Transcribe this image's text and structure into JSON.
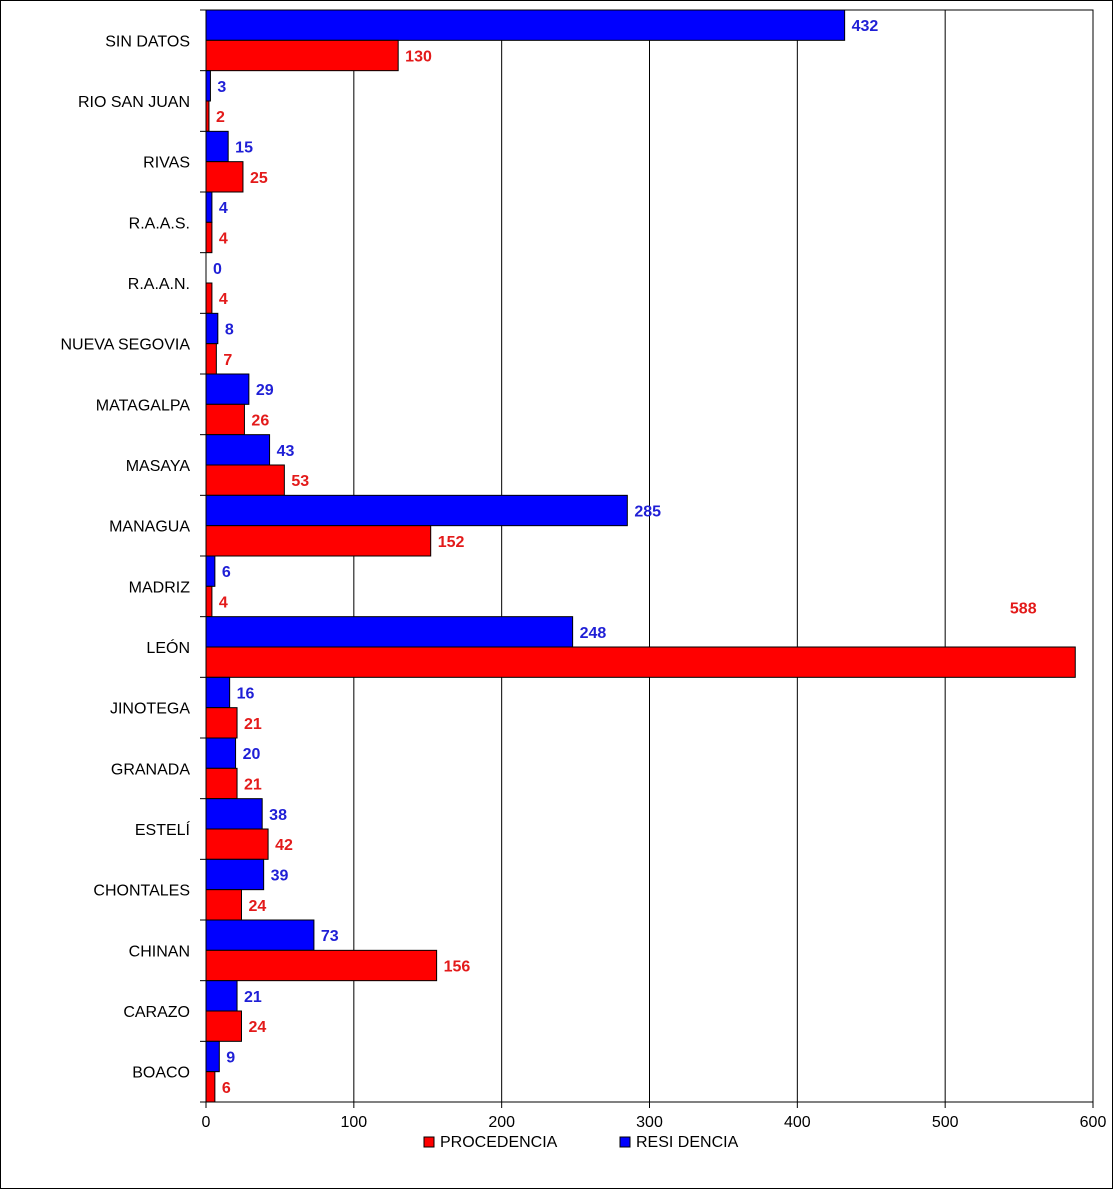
{
  "chart_data": {
    "type": "bar",
    "orientation": "horizontal",
    "title": "",
    "xlabel": "",
    "ylabel": "",
    "xlim": [
      0,
      600
    ],
    "xticks": [
      0,
      100,
      200,
      300,
      400,
      500,
      600
    ],
    "grid": "vertical",
    "legend": "bottom",
    "categories": [
      "SIN DATOS",
      "RIO SAN JUAN",
      "RIVAS",
      "R.A.A.S.",
      "R.A.A.N.",
      "NUEVA SEGOVIA",
      "MATAGALPA",
      "MASAYA",
      "MANAGUA",
      "MADRIZ",
      "LEÓN",
      "JINOTEGA",
      "GRANADA",
      "ESTELÍ",
      "CHONTALES",
      "CHINAN",
      "CARAZO",
      "BOACO"
    ],
    "series": [
      {
        "name": "RESI DENCIA",
        "color": "#0000ff",
        "label_color": "#1f1fd6",
        "values": [
          432,
          3,
          15,
          4,
          0,
          8,
          29,
          43,
          285,
          6,
          248,
          16,
          20,
          38,
          39,
          73,
          21,
          9
        ]
      },
      {
        "name": "PROCEDENCIA",
        "color": "#ff0000",
        "label_color": "#e31a1a",
        "values": [
          130,
          2,
          25,
          4,
          4,
          7,
          26,
          53,
          152,
          4,
          588,
          21,
          21,
          42,
          24,
          156,
          24,
          6
        ]
      }
    ],
    "legend_order": [
      "PROCEDENCIA",
      "RESI DENCIA"
    ]
  }
}
